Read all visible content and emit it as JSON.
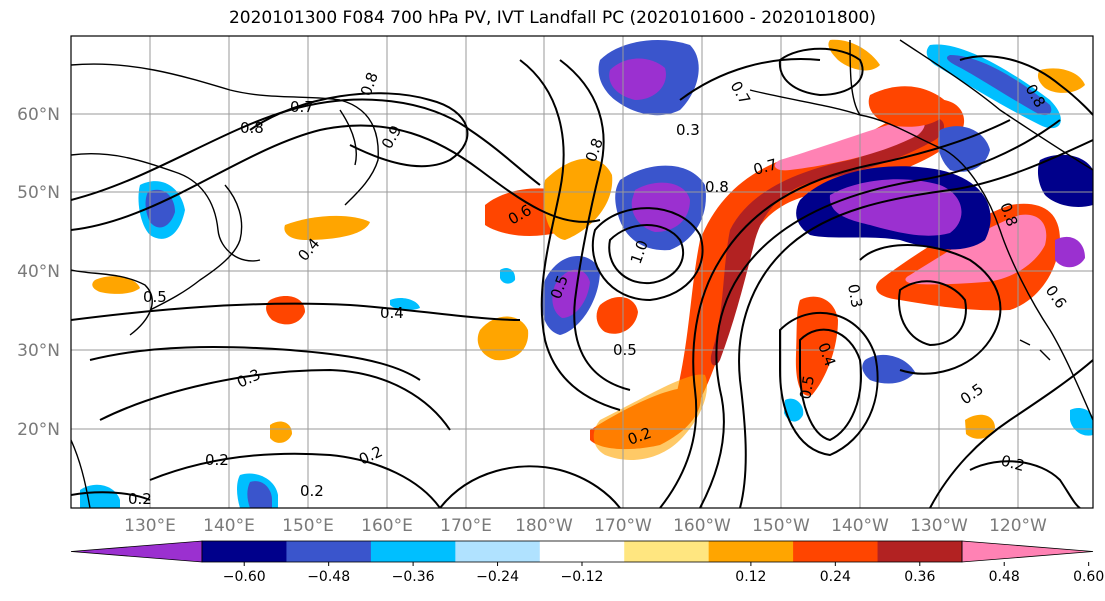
{
  "title": "2020101300 F084 700 hPa PV, IVT Landfall PC (2020101600 - 2020101800)",
  "lat_labels": [
    "60°N",
    "50°N",
    "40°N",
    "30°N",
    "20°N"
  ],
  "lon_labels": [
    "130°E",
    "140°E",
    "150°E",
    "160°E",
    "170°E",
    "180°W",
    "170°W",
    "160°W",
    "150°W",
    "140°W",
    "130°W",
    "120°W"
  ],
  "contour_labels": [
    "0.8",
    "0.8",
    "0.7",
    "0.9",
    "0.8",
    "0.6",
    "0.4",
    "0.5",
    "0.4",
    "0.3",
    "0.2",
    "0.2",
    "0.2",
    "0.2",
    "1.0",
    "0.5",
    "0.8",
    "0.3",
    "0.7",
    "0.8",
    "0.7",
    "0.2",
    "0.3",
    "0.4",
    "0.5",
    "0.5",
    "0.2",
    "0.6",
    "0.8",
    "0.5"
  ],
  "colorbar": {
    "ticks": [
      "−0.60",
      "−0.48",
      "−0.36",
      "−0.24",
      "−0.12",
      "0.12",
      "0.24",
      "0.36",
      "0.48",
      "0.60"
    ],
    "colors": [
      "#9b30d0",
      "#00008b",
      "#3a55cc",
      "#00bfff",
      "#b0e2ff",
      "#ffffff",
      "#ffe680",
      "#ffa500",
      "#ff4500",
      "#b22222",
      "#ff82b4"
    ]
  }
}
